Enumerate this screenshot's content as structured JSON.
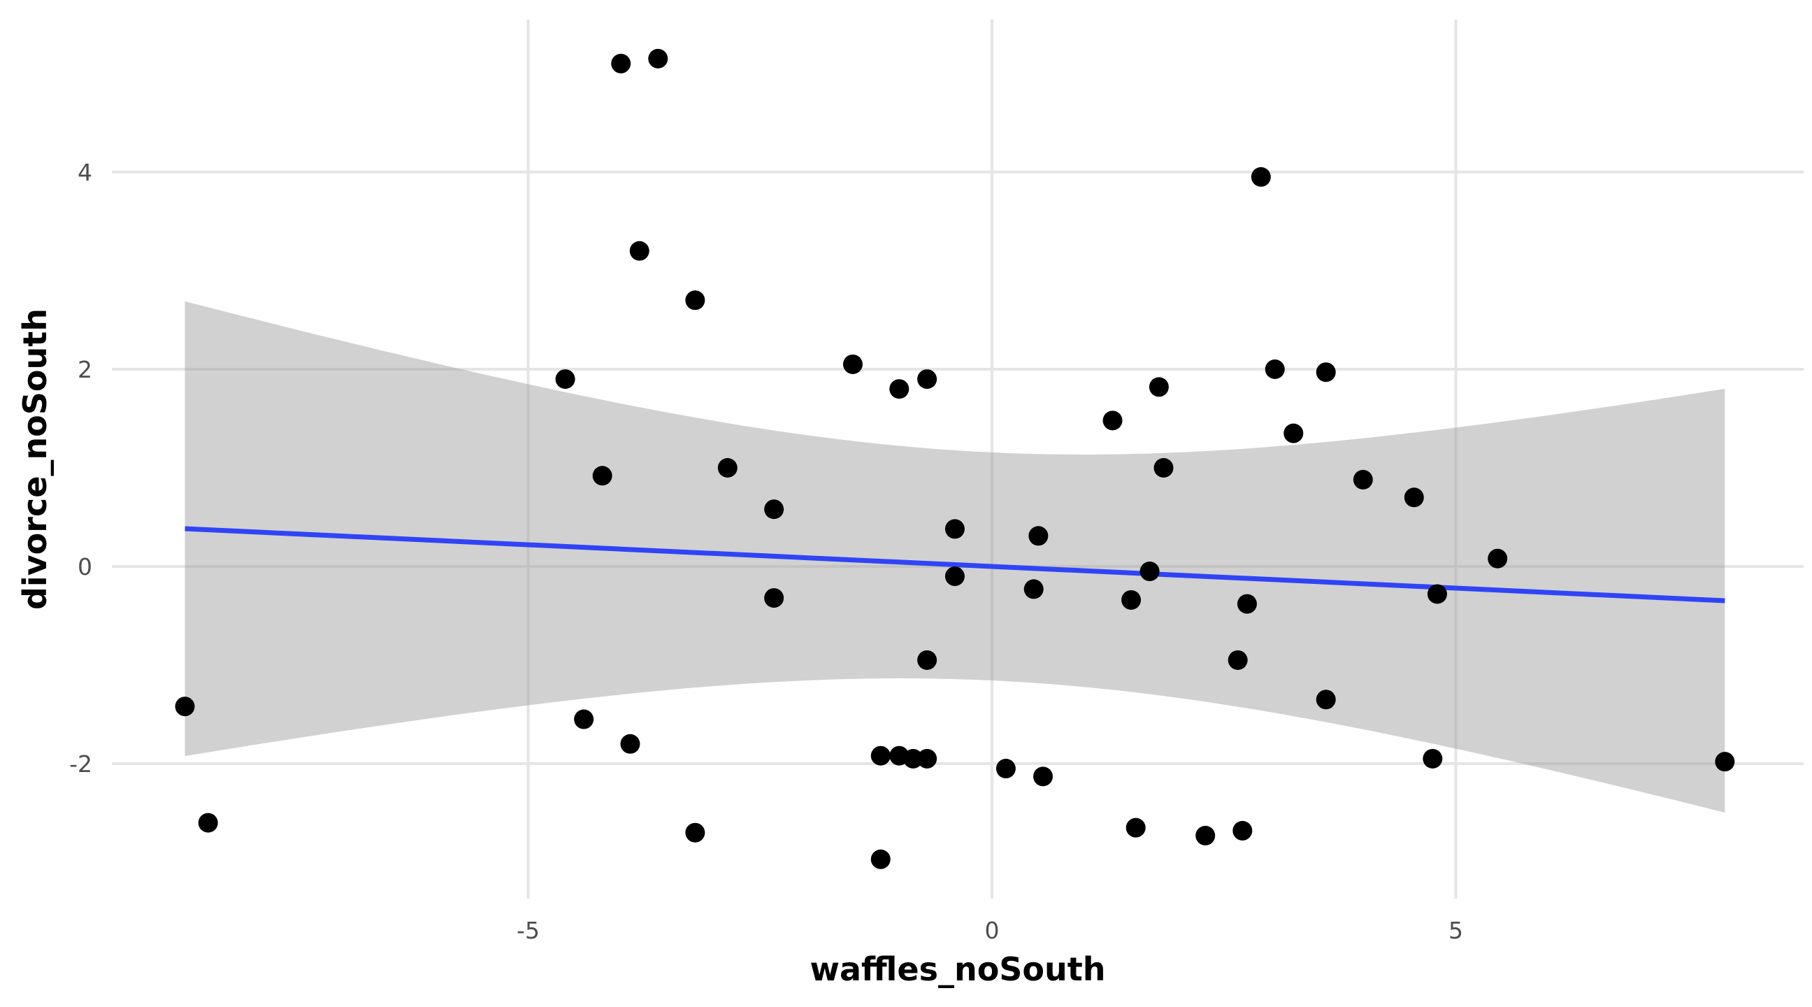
{
  "chart_data": {
    "type": "scatter",
    "title": "",
    "xlabel": "waffles_noSouth",
    "ylabel": "divorce_noSouth",
    "xlim": [
      -9.5,
      8.6
    ],
    "ylim": [
      -3.4,
      5.7
    ],
    "x_ticks": [
      -5,
      0,
      5
    ],
    "x_tick_labels": [
      "-5",
      "0",
      "5"
    ],
    "y_ticks": [
      -2,
      0,
      2,
      4
    ],
    "y_tick_labels": [
      "-2",
      "0",
      "2",
      "4"
    ],
    "grid": true,
    "legend": "none",
    "colors": {
      "points": "#000000",
      "fit_line": "#3044f5",
      "confidence_band": "#999999",
      "grid": "#e5e5e5"
    },
    "fit": {
      "method": "lm",
      "x_range": [
        -8.7,
        7.9
      ],
      "intercept": 0.0,
      "slope": -0.044,
      "se_at_mean": 0.59,
      "x_mean": 0.0,
      "se_slope": 0.117
    },
    "points": [
      {
        "x": -4.0,
        "y": 5.1
      },
      {
        "x": -3.6,
        "y": 5.15
      },
      {
        "x": 2.9,
        "y": 3.95
      },
      {
        "x": -3.8,
        "y": 3.2
      },
      {
        "x": -3.2,
        "y": 2.7
      },
      {
        "x": -4.6,
        "y": 1.9
      },
      {
        "x": -1.5,
        "y": 2.05
      },
      {
        "x": -1.0,
        "y": 1.8
      },
      {
        "x": -0.7,
        "y": 1.9
      },
      {
        "x": 1.8,
        "y": 1.82
      },
      {
        "x": 3.05,
        "y": 2.0
      },
      {
        "x": 3.6,
        "y": 1.97
      },
      {
        "x": 1.3,
        "y": 1.48
      },
      {
        "x": 3.25,
        "y": 1.35
      },
      {
        "x": -2.85,
        "y": 1.0
      },
      {
        "x": 1.85,
        "y": 1.0
      },
      {
        "x": -4.2,
        "y": 0.92
      },
      {
        "x": 4.0,
        "y": 0.88
      },
      {
        "x": 4.55,
        "y": 0.7
      },
      {
        "x": -2.35,
        "y": 0.58
      },
      {
        "x": -0.4,
        "y": 0.38
      },
      {
        "x": 0.5,
        "y": 0.31
      },
      {
        "x": 5.45,
        "y": 0.08
      },
      {
        "x": 1.7,
        "y": -0.05
      },
      {
        "x": -0.4,
        "y": -0.1
      },
      {
        "x": 0.45,
        "y": -0.23
      },
      {
        "x": 4.8,
        "y": -0.28
      },
      {
        "x": -2.35,
        "y": -0.32
      },
      {
        "x": 1.5,
        "y": -0.34
      },
      {
        "x": 2.75,
        "y": -0.38
      },
      {
        "x": -0.7,
        "y": -0.95
      },
      {
        "x": 2.65,
        "y": -0.95
      },
      {
        "x": 3.6,
        "y": -1.35
      },
      {
        "x": -8.7,
        "y": -1.42
      },
      {
        "x": -4.4,
        "y": -1.55
      },
      {
        "x": -3.9,
        "y": -1.8
      },
      {
        "x": -1.2,
        "y": -1.92
      },
      {
        "x": -1.0,
        "y": -1.92
      },
      {
        "x": -0.85,
        "y": -1.95
      },
      {
        "x": -0.7,
        "y": -1.95
      },
      {
        "x": 4.75,
        "y": -1.95
      },
      {
        "x": 7.9,
        "y": -1.98
      },
      {
        "x": 0.15,
        "y": -2.05
      },
      {
        "x": 0.55,
        "y": -2.13
      },
      {
        "x": -8.45,
        "y": -2.6
      },
      {
        "x": 1.55,
        "y": -2.65
      },
      {
        "x": 2.3,
        "y": -2.73
      },
      {
        "x": 2.7,
        "y": -2.68
      },
      {
        "x": -3.2,
        "y": -2.7
      },
      {
        "x": -1.2,
        "y": -2.97
      }
    ]
  }
}
